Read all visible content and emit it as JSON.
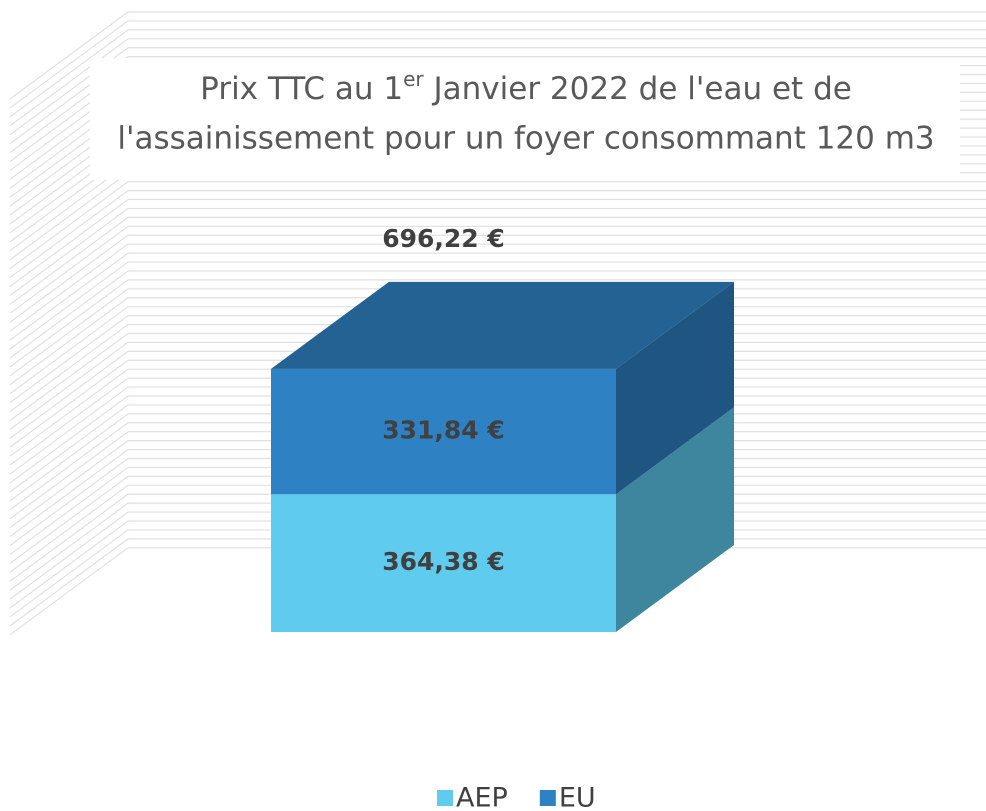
{
  "chart_data": {
    "type": "bar3d_stacked",
    "title": [
      "Prix TTC au 1",
      "er",
      " Janvier 2022 de l'eau et de",
      "l'assainissement pour un foyer consommant 120 m3"
    ],
    "series": [
      {
        "name": "AEP",
        "color": "#5ecbef",
        "values": [
          364.38
        ],
        "value_labels": [
          "364,38 €"
        ]
      },
      {
        "name": "EU",
        "color": "#2e82c4",
        "values": [
          331.84
        ],
        "value_labels": [
          "331,84 €"
        ]
      }
    ],
    "total": 696.22,
    "total_label": "696,22 €",
    "legend": "bottom"
  }
}
